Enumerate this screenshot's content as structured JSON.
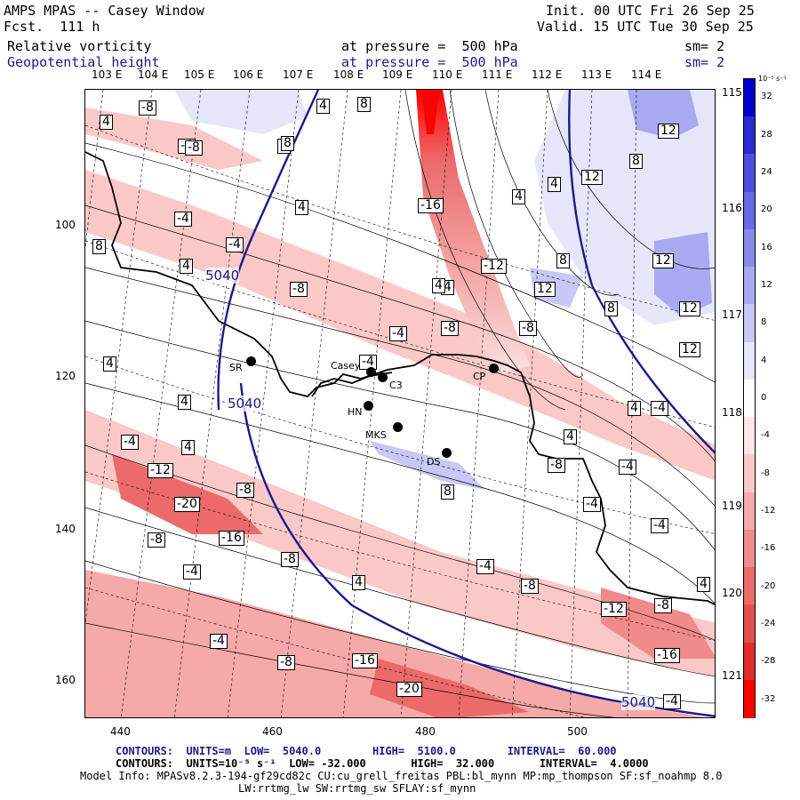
{
  "header": {
    "title": "AMPS MPAS -- Casey Window",
    "forecast": "Fcst.  111 h",
    "init": "Init. 00 UTC Fri 26 Sep 25",
    "valid": "Valid. 15 UTC Tue 30 Sep 25",
    "field1": "Relative vorticity",
    "field1_level": "at pressure =  500 hPa",
    "field1_sm": "sm= 2",
    "field2": "Geopotential height",
    "field2_level": "at pressure =  500 hPa",
    "field2_sm": "sm= 2"
  },
  "lon_labels_top": [
    "103 E",
    "104 E",
    "105 E",
    "106 E",
    "107 E",
    "108 E",
    "109 E",
    "110 E",
    "111 E",
    "112 E",
    "113 E",
    "114 E"
  ],
  "lon_labels_right": [
    "115 E",
    "116 E",
    "117 E",
    "118 E",
    "119 E",
    "120 E",
    "121 E"
  ],
  "y_ticks": [
    "100",
    "120",
    "140",
    "160"
  ],
  "x_ticks": [
    "440",
    "460",
    "480",
    "500"
  ],
  "stations": [
    {
      "id": "SR",
      "label": "SR"
    },
    {
      "id": "Casey",
      "label": "Casey"
    },
    {
      "id": "C3",
      "label": "C3"
    },
    {
      "id": "HN",
      "label": "HN"
    },
    {
      "id": "MKS",
      "label": "MKS"
    },
    {
      "id": "DS",
      "label": "DS"
    },
    {
      "id": "CP",
      "label": "CP"
    }
  ],
  "contour_labels": {
    "height_5040_a": "5040",
    "height_5040_b": "5040",
    "height_5040_c": "5040"
  },
  "vort_labels": [
    "4",
    "-8",
    "8",
    "4",
    "-4",
    "8",
    "-8",
    "12",
    "8",
    "12",
    "4",
    "4",
    "-4",
    "8",
    "-16",
    "4",
    "-4",
    "8",
    "4",
    "4",
    "-8",
    "-12",
    "8",
    "4",
    "12",
    "12",
    "12",
    "8",
    "-4",
    "-8",
    "-8",
    "12",
    "4",
    "4",
    "4",
    "-4",
    "-4",
    "4",
    "-8",
    "4",
    "-4",
    "-4",
    "-12",
    "-8",
    "-4",
    "-20",
    "-4",
    "-8",
    "-16",
    "-8",
    "-4",
    "4",
    "-8",
    "-4",
    "-8",
    "-12",
    "-4",
    "-16",
    "-20",
    "-8",
    "-16",
    "-4",
    "4",
    "8"
  ],
  "colorbar": {
    "units": "10⁻⁵ s⁻¹",
    "labels": [
      "32",
      "28",
      "24",
      "20",
      "16",
      "12",
      "8",
      "4",
      "0",
      "-4",
      "-8",
      "-12",
      "-16",
      "-20",
      "-24",
      "-28",
      "-32"
    ],
    "colors": [
      "#0000cc",
      "#2b2bd6",
      "#4d4de0",
      "#6a6ae6",
      "#8a8aec",
      "#a9a9f1",
      "#c8c8f6",
      "#e6e6fb",
      "#ffffff",
      "#ffe6e6",
      "#fbc8c8",
      "#f6a9a9",
      "#f18a8a",
      "#ec6a6a",
      "#e64d4d",
      "#e02b2b",
      "#ff0000"
    ]
  },
  "footer": {
    "line1": "CONTOURS:  UNITS=m  LOW=  5040.0        HIGH=  5100.0        INTERVAL=  60.000",
    "line2": "CONTOURS:  UNITS=10⁻⁵ s⁻¹  LOW= -32.000       HIGH=  32.000       INTERVAL=  4.0000",
    "line3": "Model Info: MPASv8.2.3-194-gf29cd82c CU:cu_grell_freitas PBL:bl_mynn MP:mp_thompson SF:sf_noahmp 8.0",
    "line4": "LW:rrtmg_lw SW:rrtmg_sw SFLAY:sf_mynn"
  }
}
